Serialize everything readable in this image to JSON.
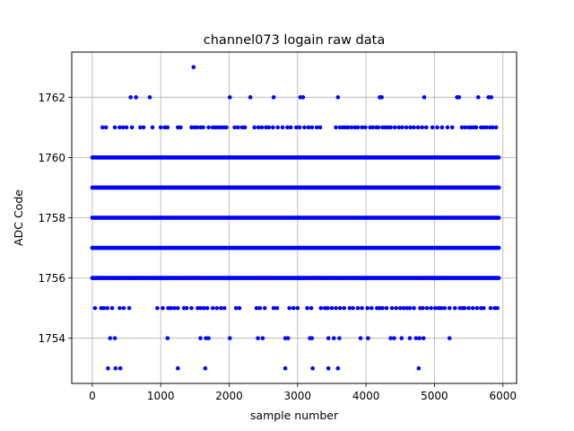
{
  "chart_data": {
    "type": "scatter",
    "title": "channel073 logain raw data",
    "xlabel": "sample number",
    "ylabel": "ADC Code",
    "xlim": [
      -300,
      6200
    ],
    "ylim": [
      1752.5,
      1763.5
    ],
    "x_ticks": [
      0,
      1000,
      2000,
      3000,
      4000,
      5000,
      6000
    ],
    "y_ticks": [
      1754,
      1756,
      1758,
      1760,
      1762
    ],
    "grid": true,
    "marker_color": "#0000ff",
    "x_range_samples": [
      0,
      5940
    ],
    "dense_levels": [
      1756,
      1757,
      1758,
      1759,
      1760
    ],
    "sparse_points": {
      "1763": [
        1480
      ],
      "1762": [
        560,
        640,
        840,
        2010,
        2310,
        2650,
        3040,
        3080,
        3590,
        4200,
        4230,
        4850,
        5330,
        5360,
        5640,
        5790,
        5830
      ],
      "1761": [
        150,
        200,
        330,
        400,
        450,
        500,
        580,
        700,
        750,
        880,
        1000,
        1060,
        1100,
        1250,
        1290,
        1450,
        1490,
        1530,
        1580,
        1620,
        1700,
        1760,
        1800,
        1840,
        1880,
        1920,
        1960,
        2080,
        2130,
        2190,
        2230,
        2370,
        2430,
        2480,
        2540,
        2580,
        2640,
        2710,
        2780,
        2850,
        2900,
        2980,
        3030,
        3100,
        3160,
        3210,
        3280,
        3330,
        3560,
        3620,
        3660,
        3700,
        3740,
        3790,
        3840,
        3880,
        3940,
        3990,
        4060,
        4100,
        4150,
        4180,
        4240,
        4280,
        4320,
        4360,
        4420,
        4480,
        4530,
        4590,
        4650,
        4700,
        4760,
        4820,
        4880,
        4970,
        5040,
        5110,
        5190,
        5260,
        5400,
        5450,
        5500,
        5540,
        5580,
        5610,
        5680,
        5720,
        5760,
        5810,
        5850,
        5900
      ],
      "1755": [
        40,
        130,
        170,
        220,
        290,
        400,
        460,
        540,
        950,
        1030,
        1110,
        1150,
        1200,
        1250,
        1340,
        1380,
        1450,
        1540,
        1580,
        1630,
        1680,
        1760,
        1820,
        1880,
        1930,
        2100,
        2150,
        2400,
        2450,
        2520,
        2650,
        2700,
        2880,
        2940,
        3000,
        3140,
        3200,
        3340,
        3400,
        3440,
        3500,
        3560,
        3620,
        3680,
        3760,
        3810,
        3880,
        3940,
        4020,
        4080,
        4160,
        4200,
        4240,
        4300,
        4380,
        4440,
        4500,
        4550,
        4600,
        4640,
        4700,
        4790,
        4830,
        4890,
        4950,
        5010,
        5060,
        5100,
        5150,
        5220,
        5300,
        5370,
        5410,
        5440,
        5500,
        5560,
        5620,
        5680,
        5720,
        5820,
        5880,
        5920
      ],
      "1754": [
        260,
        330,
        1100,
        1580,
        1660,
        1700,
        2010,
        2420,
        2490,
        2820,
        2860,
        3180,
        3210,
        3450,
        3530,
        3610,
        3920,
        4030,
        4360,
        4410,
        4520,
        4640,
        4730,
        4780,
        4840,
        5220
      ],
      "1753": [
        230,
        340,
        410,
        1250,
        1650,
        2820,
        3220,
        3450,
        3590,
        4770
      ]
    }
  }
}
